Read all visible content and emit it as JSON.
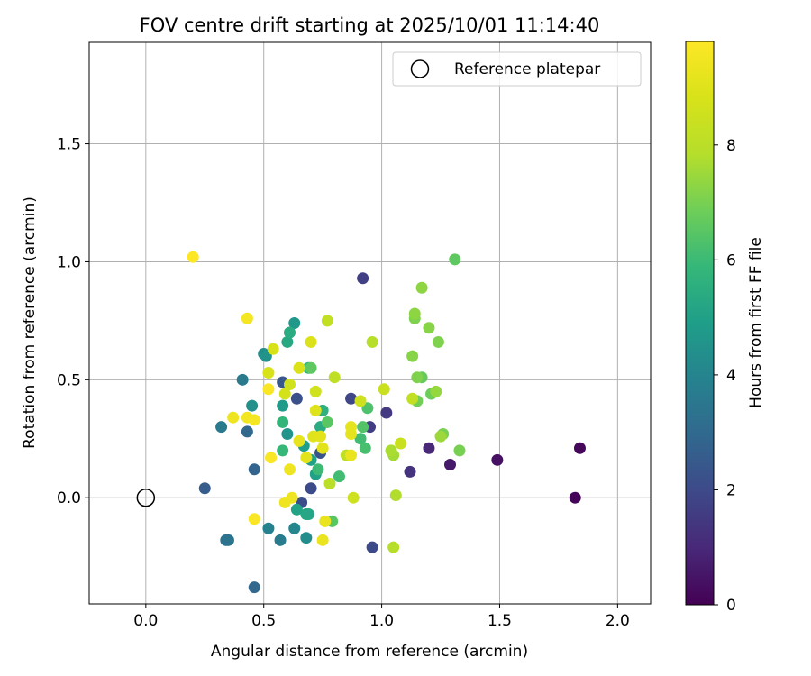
{
  "chart_data": {
    "type": "scatter",
    "title": "FOV centre drift starting at 2025/10/01 11:14:40",
    "xlabel": "Angular distance from reference (arcmin)",
    "ylabel": "Rotation from reference (arcmin)",
    "xlim": [
      -0.24,
      2.14
    ],
    "ylim": [
      -0.45,
      1.93
    ],
    "xticks": [
      0.0,
      0.5,
      1.0,
      1.5,
      2.0
    ],
    "xtick_labels": [
      "0.0",
      "0.5",
      "1.0",
      "1.5",
      "2.0"
    ],
    "yticks": [
      0.0,
      0.5,
      1.0,
      1.5
    ],
    "ytick_labels": [
      "0.0",
      "0.5",
      "1.0",
      "1.5"
    ],
    "grid": true,
    "legend": {
      "position": "top-right",
      "label": "Reference platepar"
    },
    "reference_point": {
      "x": 0.0,
      "y": 0.0
    },
    "colorbar": {
      "label": "Hours from first FF file",
      "min": 0,
      "max": 9.8,
      "ticks": [
        0,
        2,
        4,
        6,
        8
      ],
      "tick_labels": [
        "0",
        "2",
        "4",
        "6",
        "8"
      ],
      "colormap": "viridis"
    },
    "points": [
      {
        "x": 1.82,
        "y": 0.0,
        "h": 0.1
      },
      {
        "x": 1.84,
        "y": 0.21,
        "h": 0.15
      },
      {
        "x": 1.49,
        "y": 0.16,
        "h": 0.4
      },
      {
        "x": 1.29,
        "y": 0.14,
        "h": 0.6
      },
      {
        "x": 1.2,
        "y": 0.21,
        "h": 1.0
      },
      {
        "x": 1.12,
        "y": 0.11,
        "h": 1.3
      },
      {
        "x": 1.02,
        "y": 0.36,
        "h": 1.5
      },
      {
        "x": 0.95,
        "y": 0.3,
        "h": 1.6
      },
      {
        "x": 0.92,
        "y": 0.93,
        "h": 1.7
      },
      {
        "x": 0.87,
        "y": 0.42,
        "h": 1.9
      },
      {
        "x": 0.96,
        "y": -0.21,
        "h": 2.0
      },
      {
        "x": 0.7,
        "y": 0.04,
        "h": 2.0
      },
      {
        "x": 0.66,
        "y": -0.02,
        "h": 2.1
      },
      {
        "x": 0.64,
        "y": 0.42,
        "h": 2.2
      },
      {
        "x": 0.74,
        "y": 0.19,
        "h": 2.3
      },
      {
        "x": 0.58,
        "y": 0.49,
        "h": 2.4
      },
      {
        "x": 0.25,
        "y": 0.04,
        "h": 2.6
      },
      {
        "x": 0.46,
        "y": 0.12,
        "h": 2.8
      },
      {
        "x": 0.43,
        "y": 0.28,
        "h": 2.9
      },
      {
        "x": 0.46,
        "y": -0.38,
        "h": 2.9
      },
      {
        "x": 0.34,
        "y": -0.18,
        "h": 3.3
      },
      {
        "x": 0.35,
        "y": -0.18,
        "h": 3.4
      },
      {
        "x": 0.32,
        "y": 0.3,
        "h": 3.6
      },
      {
        "x": 0.41,
        "y": 0.5,
        "h": 3.6
      },
      {
        "x": 0.57,
        "y": -0.18,
        "h": 3.7
      },
      {
        "x": 0.52,
        "y": -0.13,
        "h": 3.9
      },
      {
        "x": 0.63,
        "y": -0.13,
        "h": 4.1
      },
      {
        "x": 0.68,
        "y": -0.17,
        "h": 4.3
      },
      {
        "x": 0.45,
        "y": 0.39,
        "h": 4.4
      },
      {
        "x": 0.5,
        "y": 0.61,
        "h": 4.3
      },
      {
        "x": 0.51,
        "y": 0.6,
        "h": 4.5
      },
      {
        "x": 0.6,
        "y": 0.27,
        "h": 4.6
      },
      {
        "x": 0.63,
        "y": 0.74,
        "h": 4.7
      },
      {
        "x": 0.58,
        "y": 0.39,
        "h": 4.8
      },
      {
        "x": 0.67,
        "y": 0.22,
        "h": 4.9
      },
      {
        "x": 0.72,
        "y": 0.1,
        "h": 5.0
      },
      {
        "x": 0.7,
        "y": 0.16,
        "h": 5.0
      },
      {
        "x": 0.64,
        "y": -0.05,
        "h": 5.1
      },
      {
        "x": 0.68,
        "y": -0.07,
        "h": 5.2
      },
      {
        "x": 0.69,
        "y": -0.07,
        "h": 5.2
      },
      {
        "x": 0.6,
        "y": 0.66,
        "h": 5.3
      },
      {
        "x": 0.61,
        "y": 0.7,
        "h": 5.4
      },
      {
        "x": 0.74,
        "y": 0.3,
        "h": 5.4
      },
      {
        "x": 0.75,
        "y": 0.37,
        "h": 5.6
      },
      {
        "x": 0.69,
        "y": 0.55,
        "h": 5.7
      },
      {
        "x": 0.58,
        "y": 0.32,
        "h": 5.8
      },
      {
        "x": 0.58,
        "y": 0.2,
        "h": 5.9
      },
      {
        "x": 0.73,
        "y": 0.12,
        "h": 6.0
      },
      {
        "x": 0.82,
        "y": 0.09,
        "h": 6.1
      },
      {
        "x": 0.91,
        "y": 0.25,
        "h": 6.1
      },
      {
        "x": 0.93,
        "y": 0.21,
        "h": 6.2
      },
      {
        "x": 0.94,
        "y": 0.38,
        "h": 6.3
      },
      {
        "x": 0.92,
        "y": 0.3,
        "h": 6.4
      },
      {
        "x": 0.77,
        "y": 0.32,
        "h": 6.5
      },
      {
        "x": 0.79,
        "y": -0.1,
        "h": 6.5
      },
      {
        "x": 0.7,
        "y": 0.55,
        "h": 6.6
      },
      {
        "x": 1.31,
        "y": 1.01,
        "h": 6.6
      },
      {
        "x": 1.17,
        "y": 0.51,
        "h": 6.7
      },
      {
        "x": 1.21,
        "y": 0.44,
        "h": 6.8
      },
      {
        "x": 1.15,
        "y": 0.41,
        "h": 6.9
      },
      {
        "x": 1.26,
        "y": 0.27,
        "h": 7.0
      },
      {
        "x": 1.33,
        "y": 0.2,
        "h": 7.0
      },
      {
        "x": 1.24,
        "y": 0.66,
        "h": 7.1
      },
      {
        "x": 1.14,
        "y": 0.76,
        "h": 7.1
      },
      {
        "x": 1.15,
        "y": 0.51,
        "h": 7.1
      },
      {
        "x": 1.2,
        "y": 0.72,
        "h": 7.2
      },
      {
        "x": 1.13,
        "y": 0.6,
        "h": 7.2
      },
      {
        "x": 1.17,
        "y": 0.89,
        "h": 7.3
      },
      {
        "x": 1.14,
        "y": 0.78,
        "h": 7.3
      },
      {
        "x": 1.23,
        "y": 0.45,
        "h": 7.4
      },
      {
        "x": 1.25,
        "y": 0.26,
        "h": 7.5
      },
      {
        "x": 1.05,
        "y": 0.18,
        "h": 7.6
      },
      {
        "x": 1.04,
        "y": 0.2,
        "h": 7.7
      },
      {
        "x": 1.06,
        "y": 0.01,
        "h": 7.8
      },
      {
        "x": 1.05,
        "y": -0.21,
        "h": 7.9
      },
      {
        "x": 0.96,
        "y": 0.66,
        "h": 7.9
      },
      {
        "x": 0.78,
        "y": 0.06,
        "h": 8.0
      },
      {
        "x": 0.85,
        "y": 0.18,
        "h": 8.1
      },
      {
        "x": 0.8,
        "y": 0.51,
        "h": 8.1
      },
      {
        "x": 0.77,
        "y": 0.75,
        "h": 8.2
      },
      {
        "x": 1.13,
        "y": 0.42,
        "h": 8.2
      },
      {
        "x": 1.08,
        "y": 0.23,
        "h": 8.4
      },
      {
        "x": 1.01,
        "y": 0.46,
        "h": 8.4
      },
      {
        "x": 0.91,
        "y": 0.41,
        "h": 8.5
      },
      {
        "x": 0.88,
        "y": 0.0,
        "h": 8.5
      },
      {
        "x": 0.72,
        "y": 0.45,
        "h": 8.6
      },
      {
        "x": 0.61,
        "y": 0.48,
        "h": 8.6
      },
      {
        "x": 0.59,
        "y": 0.44,
        "h": 8.7
      },
      {
        "x": 0.52,
        "y": 0.53,
        "h": 8.8
      },
      {
        "x": 0.54,
        "y": 0.63,
        "h": 8.8
      },
      {
        "x": 0.65,
        "y": 0.55,
        "h": 8.9
      },
      {
        "x": 0.7,
        "y": 0.66,
        "h": 8.9
      },
      {
        "x": 0.72,
        "y": 0.37,
        "h": 9.0
      },
      {
        "x": 0.71,
        "y": 0.26,
        "h": 9.0
      },
      {
        "x": 0.74,
        "y": 0.26,
        "h": 9.1
      },
      {
        "x": 0.75,
        "y": 0.21,
        "h": 9.1
      },
      {
        "x": 0.68,
        "y": 0.17,
        "h": 9.1
      },
      {
        "x": 0.65,
        "y": 0.24,
        "h": 9.2
      },
      {
        "x": 0.87,
        "y": 0.27,
        "h": 9.2
      },
      {
        "x": 0.87,
        "y": 0.3,
        "h": 9.2
      },
      {
        "x": 0.87,
        "y": 0.18,
        "h": 9.3
      },
      {
        "x": 0.75,
        "y": -0.18,
        "h": 9.3
      },
      {
        "x": 0.76,
        "y": -0.1,
        "h": 9.3
      },
      {
        "x": 0.62,
        "y": 0.0,
        "h": 9.4
      },
      {
        "x": 0.61,
        "y": 0.12,
        "h": 9.4
      },
      {
        "x": 0.59,
        "y": -0.02,
        "h": 9.4
      },
      {
        "x": 0.37,
        "y": 0.34,
        "h": 9.4
      },
      {
        "x": 0.43,
        "y": 0.34,
        "h": 9.5
      },
      {
        "x": 0.43,
        "y": 0.76,
        "h": 9.6
      },
      {
        "x": 0.46,
        "y": 0.33,
        "h": 9.6
      },
      {
        "x": 0.52,
        "y": 0.46,
        "h": 9.7
      },
      {
        "x": 0.53,
        "y": 0.17,
        "h": 9.7
      },
      {
        "x": 0.46,
        "y": -0.09,
        "h": 9.7
      },
      {
        "x": 0.2,
        "y": 1.02,
        "h": 9.8
      }
    ]
  }
}
